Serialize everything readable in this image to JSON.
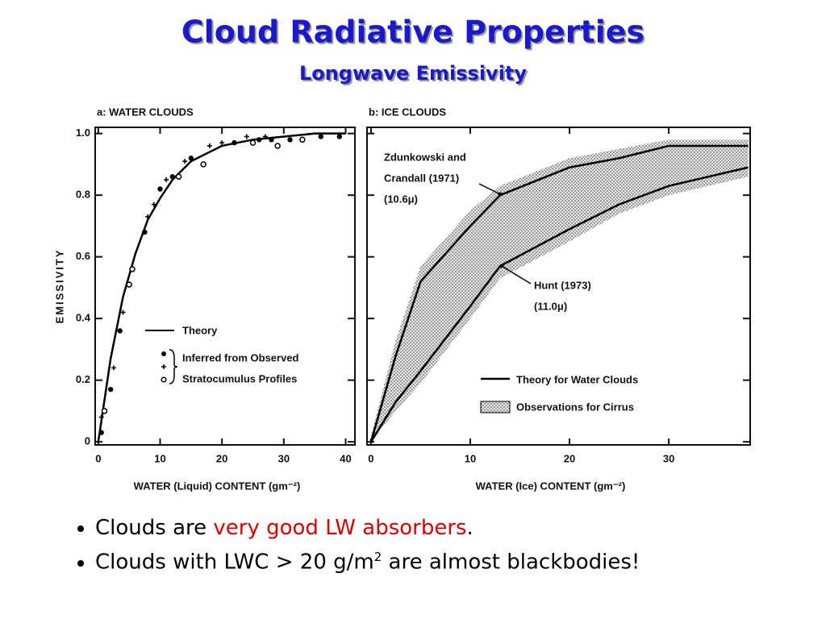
{
  "title": "Cloud Radiative Properties",
  "subtitle": "Longwave Emissivity",
  "chart_data": [
    {
      "type": "line",
      "title": "a: WATER CLOUDS",
      "xlabel": "WATER (Liquid) CONTENT (gm⁻²)",
      "ylabel": "EMISSIVITY",
      "xlim": [
        -0.5,
        41.5
      ],
      "ylim": [
        -0.01,
        1.02
      ],
      "xticks": [
        0,
        10,
        20,
        30,
        40
      ],
      "yticks": [
        0,
        0.2,
        0.4,
        0.6,
        0.8,
        {
          "value": 1,
          "label": "1.0"
        }
      ],
      "series": [
        {
          "name": "Theory",
          "marker": "line",
          "color": "#000000",
          "x": [
            0,
            2,
            4,
            6,
            8,
            10,
            12,
            15,
            20,
            25,
            30,
            35,
            40
          ],
          "values": [
            0,
            0.27,
            0.47,
            0.61,
            0.72,
            0.79,
            0.85,
            0.91,
            0.96,
            0.98,
            0.99,
            1.0,
            1.0
          ]
        },
        {
          "marker": "dot",
          "color": "#000000",
          "x": [
            0.5,
            2,
            3.5,
            7.5,
            10,
            12,
            15,
            22,
            26,
            28,
            31,
            36,
            39
          ],
          "values": [
            0.03,
            0.17,
            0.36,
            0.68,
            0.82,
            0.86,
            0.92,
            0.97,
            0.98,
            0.98,
            0.98,
            0.99,
            0.99
          ]
        },
        {
          "marker": "plus",
          "color": "#000000",
          "x": [
            0.5,
            2.5,
            4,
            8,
            9,
            11,
            14,
            18,
            20,
            24,
            27
          ],
          "values": [
            0.08,
            0.24,
            0.42,
            0.73,
            0.77,
            0.85,
            0.91,
            0.96,
            0.97,
            0.99,
            0.99
          ]
        },
        {
          "marker": "circle",
          "color": "#000000",
          "x": [
            1,
            5,
            5.5,
            13,
            17,
            25,
            29,
            33
          ],
          "values": [
            0.1,
            0.51,
            0.56,
            0.86,
            0.9,
            0.97,
            0.96,
            0.98
          ]
        }
      ],
      "legend_note": [
        "Inferred from Observed",
        "Stratocumulus Profiles"
      ]
    },
    {
      "type": "line",
      "title": "b: ICE CLOUDS",
      "xlabel": "WATER (Ice) CONTENT (gm⁻²)",
      "xlim": [
        -0.4,
        38.2
      ],
      "ylim": [
        -0.01,
        1.02
      ],
      "xticks": [
        0,
        10,
        20,
        30
      ],
      "yticks": [
        0,
        0.2,
        0.4,
        0.6,
        0.8,
        1
      ],
      "ytick_labels": false,
      "series": [
        {
          "name": "Observations for Cirrus",
          "marker": "band",
          "color": "#000000",
          "x": [
            0,
            2.5,
            5,
            10,
            13,
            20,
            25,
            30,
            38
          ],
          "low": [
            0,
            0.1,
            0.19,
            0.4,
            0.53,
            0.65,
            0.74,
            0.8,
            0.86
          ],
          "values": [
            0.02,
            0.33,
            0.57,
            0.75,
            0.83,
            0.92,
            0.95,
            0.98,
            0.98
          ]
        },
        {
          "name": "Theory for Water Clouds",
          "marker": "line",
          "color": "#000000",
          "x": [
            0,
            2.5,
            5,
            10,
            13,
            20,
            25,
            30,
            38
          ],
          "values": [
            0,
            0.28,
            0.52,
            0.7,
            0.8,
            0.89,
            0.92,
            0.96,
            0.96
          ]
        },
        {
          "marker": "line",
          "color": "#000000",
          "x": [
            0,
            2.5,
            5,
            10,
            13,
            20,
            25,
            30,
            38
          ],
          "values": [
            0,
            0.13,
            0.23,
            0.44,
            0.57,
            0.69,
            0.77,
            0.83,
            0.89
          ]
        }
      ],
      "annotations": [
        {
          "lines": [
            "Zdunkowski and",
            "Crandall (1971)",
            "(10.6μ)"
          ]
        },
        {
          "lines": [
            "Hunt (1973)",
            "(11.0μ)"
          ]
        }
      ]
    }
  ],
  "bullets": [
    [
      "Clouds are ",
      "very good LW absorbers",
      "."
    ],
    [
      "Clouds with LWC > 20 g/m",
      "2",
      " are almost blackbodies!"
    ]
  ]
}
